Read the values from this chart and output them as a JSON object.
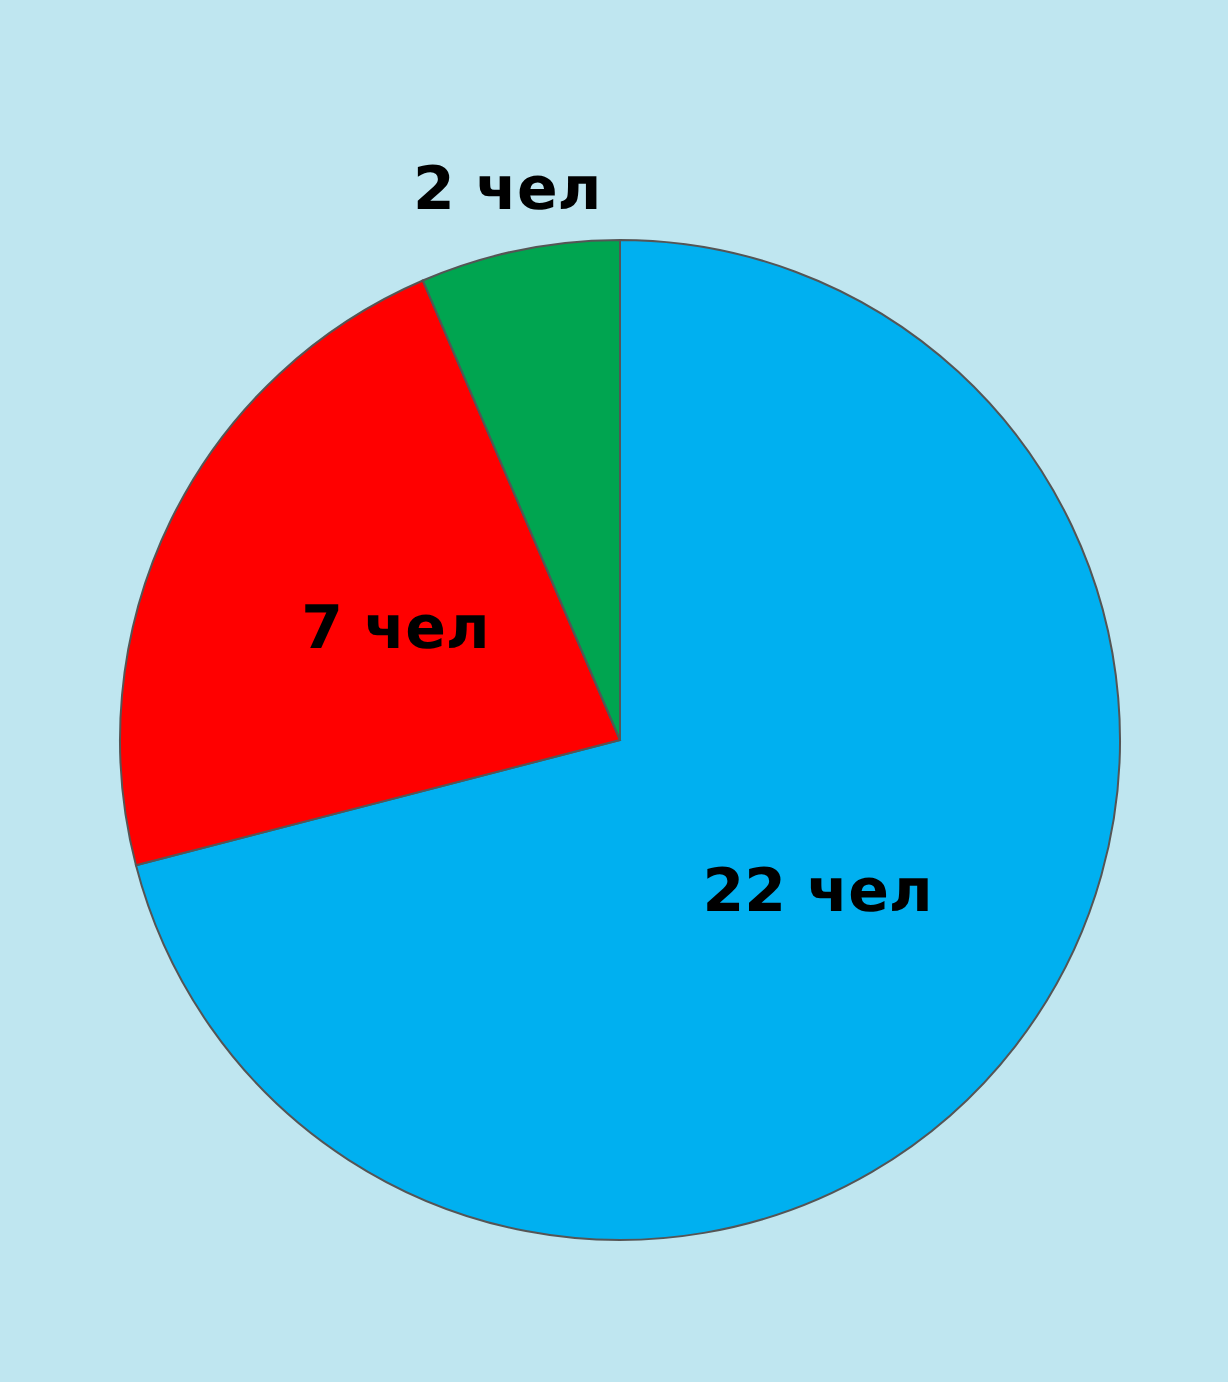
{
  "chart_data": {
    "type": "pie",
    "categories": [
      null,
      null,
      null
    ],
    "values": [
      22,
      7,
      2
    ],
    "colors": [
      "#00b0f0",
      "#ff0000",
      "#00a550"
    ],
    "value_labels": [
      "22 чел",
      "7 чел",
      "2 чел"
    ]
  }
}
